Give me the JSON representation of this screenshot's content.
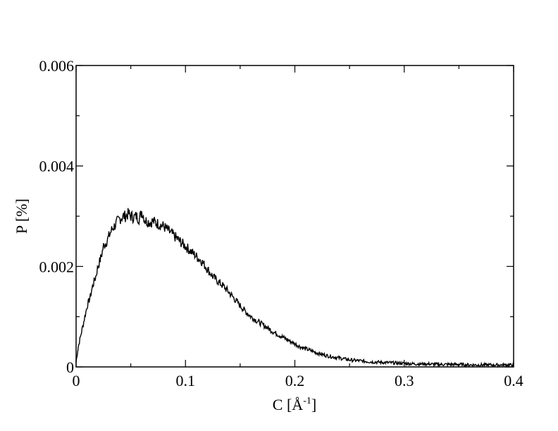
{
  "chart_data": {
    "type": "line",
    "title": "",
    "xlabel": "C [Å",
    "xlabel_sup": "-1",
    "xlabel_close": "]",
    "ylabel": "P [%]",
    "xlim": [
      0,
      0.4
    ],
    "ylim": [
      0,
      0.006
    ],
    "x_ticks": [
      "0",
      "0.1",
      "0.2",
      "0.3",
      "0.4"
    ],
    "y_ticks": [
      "0",
      "0.002",
      "0.004",
      "0.006"
    ],
    "grid": false,
    "legend": "none",
    "series": [
      {
        "color": "#000000",
        "x": [
          0.0,
          0.002,
          0.005,
          0.008,
          0.01,
          0.013,
          0.015,
          0.018,
          0.02,
          0.023,
          0.025,
          0.028,
          0.03,
          0.033,
          0.035,
          0.038,
          0.04,
          0.043,
          0.045,
          0.048,
          0.05,
          0.053,
          0.055,
          0.058,
          0.06,
          0.063,
          0.065,
          0.068,
          0.07,
          0.073,
          0.075,
          0.078,
          0.08,
          0.085,
          0.09,
          0.095,
          0.1,
          0.105,
          0.11,
          0.115,
          0.12,
          0.125,
          0.13,
          0.135,
          0.14,
          0.145,
          0.15,
          0.155,
          0.16,
          0.165,
          0.17,
          0.175,
          0.18,
          0.185,
          0.19,
          0.195,
          0.2,
          0.205,
          0.21,
          0.215,
          0.22,
          0.225,
          0.23,
          0.235,
          0.24,
          0.245,
          0.25,
          0.26,
          0.27,
          0.28,
          0.29,
          0.3,
          0.31,
          0.32,
          0.33,
          0.34,
          0.35,
          0.36,
          0.37,
          0.38,
          0.39,
          0.4
        ],
        "y": [
          0.0001,
          0.0004,
          0.0007,
          0.001,
          0.0012,
          0.0014,
          0.0016,
          0.0018,
          0.002,
          0.0022,
          0.0024,
          0.0025,
          0.0026,
          0.00275,
          0.0028,
          0.0029,
          0.00295,
          0.003,
          0.003,
          0.00305,
          0.003,
          0.00298,
          0.003,
          0.00295,
          0.0031,
          0.00292,
          0.0029,
          0.00288,
          0.0029,
          0.00287,
          0.00285,
          0.00282,
          0.0028,
          0.0027,
          0.0026,
          0.0025,
          0.0024,
          0.0023,
          0.0022,
          0.0021,
          0.00195,
          0.0018,
          0.0017,
          0.0016,
          0.00148,
          0.00135,
          0.00122,
          0.0011,
          0.001,
          0.00092,
          0.00085,
          0.00078,
          0.0007,
          0.00064,
          0.00058,
          0.00052,
          0.00046,
          0.0004,
          0.00036,
          0.00032,
          0.00028,
          0.00025,
          0.00022,
          0.0002,
          0.00018,
          0.00016,
          0.00014,
          0.00012,
          0.0001,
          9e-05,
          8e-05,
          7e-05,
          6e-05,
          6e-05,
          5e-05,
          5e-05,
          5e-05,
          4e-05,
          4e-05,
          4e-05,
          4e-05,
          4e-05
        ]
      }
    ]
  }
}
